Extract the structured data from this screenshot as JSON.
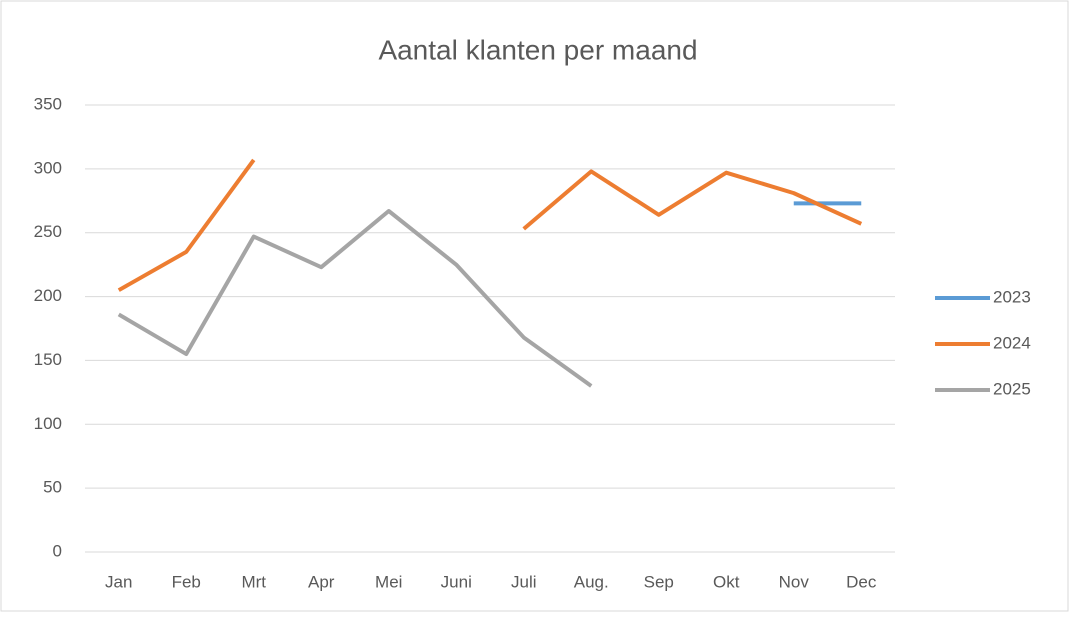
{
  "chart_data": {
    "type": "line",
    "title": "Aantal klanten per maand",
    "categories": [
      "Jan",
      "Feb",
      "Mrt",
      "Apr",
      "Mei",
      "Juni",
      "Juli",
      "Aug.",
      "Sep",
      "Okt",
      "Nov",
      "Dec"
    ],
    "series": [
      {
        "name": "2023",
        "color": "#5b9bd5",
        "values": [
          null,
          null,
          null,
          null,
          null,
          null,
          null,
          null,
          null,
          null,
          273,
          273
        ]
      },
      {
        "name": "2024",
        "color": "#ed7d31",
        "values": [
          205,
          235,
          307,
          null,
          null,
          null,
          253,
          298,
          264,
          297,
          281,
          257
        ]
      },
      {
        "name": "2025",
        "color": "#a5a5a5",
        "values": [
          186,
          155,
          247,
          223,
          267,
          225,
          168,
          130,
          null,
          null,
          null,
          null
        ]
      }
    ],
    "ylim": [
      0,
      350
    ],
    "yticks": [
      0,
      50,
      100,
      150,
      200,
      250,
      300,
      350
    ],
    "grid": true,
    "legend": "right"
  }
}
